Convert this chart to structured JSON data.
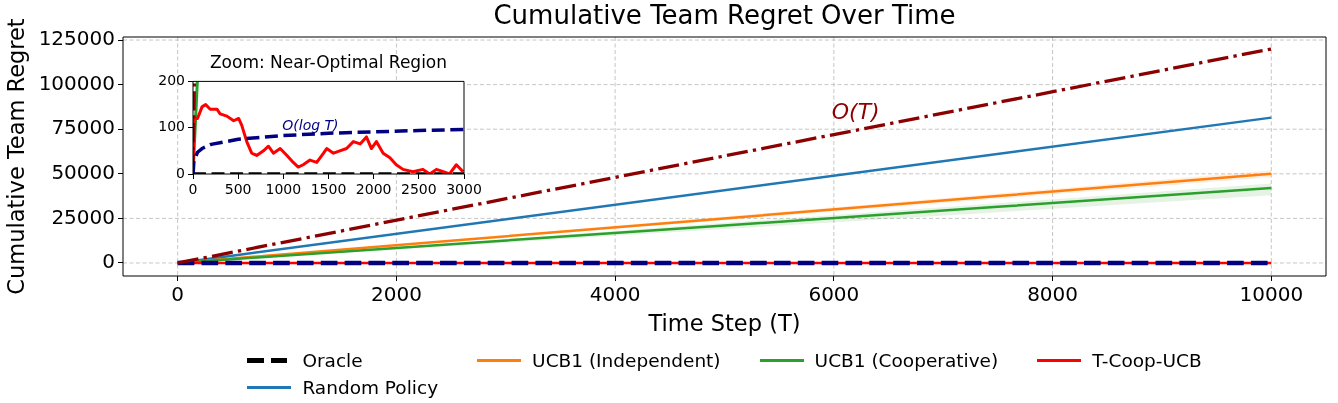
{
  "chart_data": [
    {
      "type": "line",
      "title": "Cumulative Team Regret Over Time",
      "xlabel": "Time Step (T)",
      "ylabel": "Cumulative Team Regret",
      "xlim": [
        -500,
        10500
      ],
      "xticks": [
        0,
        2000,
        4000,
        6000,
        8000,
        10000
      ],
      "ylim": [
        -7300,
        126700
      ],
      "yticks": [
        0,
        25000,
        50000,
        75000,
        100000,
        125000
      ],
      "grid": true,
      "legend": "bottom",
      "annotations": [
        {
          "text": "O(T)",
          "x": 6200,
          "y": 74400
        }
      ],
      "series": [
        {
          "name": "Oracle",
          "color": "#000000",
          "line_style": "dashed"
        },
        {
          "name": "Random Policy",
          "color": "#1f77b4",
          "x": [
            0,
            10000
          ],
          "values": [
            0,
            81500
          ]
        },
        {
          "name": "UCB1 (Independent)",
          "color": "#ff7f0e",
          "x": [
            0,
            2500,
            5000,
            7500,
            10000
          ],
          "values": [
            0,
            12500,
            25000,
            37500,
            50000
          ],
          "lower": [
            0,
            12000,
            24000,
            36000,
            48000
          ],
          "upper": [
            0,
            13000,
            26000,
            39000,
            52000
          ]
        },
        {
          "name": "UCB1 (Cooperative)",
          "color": "#2ca02c",
          "x": [
            0,
            2500,
            5000,
            7500,
            10000
          ],
          "values": [
            0,
            10500,
            21000,
            31500,
            42000
          ],
          "lower": [
            0,
            9500,
            19000,
            28500,
            38000
          ],
          "upper": [
            0,
            11000,
            22500,
            33500,
            44500
          ]
        },
        {
          "name": "T-Coop-UCB",
          "color": "#ff0000",
          "x": [
            0,
            10000
          ],
          "values": [
            0,
            0
          ]
        },
        {
          "color": "#000080",
          "line_style": "dashed",
          "x": [
            0,
            10000
          ],
          "values": [
            0,
            0
          ]
        },
        {
          "color": "#8b0000",
          "line_style": "dashdot",
          "x": [
            0,
            10000
          ],
          "values": [
            0,
            120000
          ]
        }
      ]
    },
    {
      "type": "line",
      "title": "Zoom: Near-Optimal Region",
      "xlim": [
        0,
        3000
      ],
      "xticks": [
        0,
        500,
        1000,
        1500,
        2000,
        2500,
        3000
      ],
      "ylim": [
        0,
        200
      ],
      "yticks": [
        0,
        100,
        200
      ],
      "annotations": [
        {
          "text": "O(log T)",
          "x": 1300,
          "y": 85
        }
      ],
      "series": [
        {
          "color": "#000000",
          "line_style": "dashed",
          "x": [
            0,
            3000
          ],
          "values": [
            0,
            0
          ]
        },
        {
          "color": "#2ca02c",
          "x": [
            0,
            48
          ],
          "values": [
            0,
            200
          ]
        },
        {
          "color": "#ff0000",
          "x": [
            0,
            15,
            50,
            100,
            140,
            190,
            265,
            300,
            375,
            450,
            505,
            540,
            595,
            650,
            705,
            780,
            835,
            890,
            965,
            1040,
            1110,
            1165,
            1220,
            1295,
            1370,
            1445,
            1480,
            1555,
            1625,
            1700,
            1775,
            1850,
            1920,
            1975,
            2030,
            2105,
            2180,
            2250,
            2325,
            2435,
            2545,
            2620,
            2695,
            2770,
            2840,
            2915,
            2990
          ],
          "values": [
            0,
            120,
            120,
            145,
            150,
            140,
            140,
            130,
            125,
            115,
            120,
            105,
            70,
            45,
            40,
            50,
            60,
            45,
            55,
            40,
            25,
            15,
            20,
            30,
            25,
            45,
            55,
            45,
            50,
            55,
            70,
            65,
            80,
            55,
            70,
            45,
            35,
            20,
            10,
            5,
            10,
            0,
            10,
            5,
            0,
            20,
            5
          ]
        },
        {
          "color": "#8b0000",
          "line_style": "dashdot",
          "x": [
            0,
            17
          ],
          "values": [
            0,
            200
          ]
        },
        {
          "color": "#000080",
          "line_style": "dashed",
          "x": [
            1,
            10,
            50,
            100,
            200,
            500,
            1000,
            1500,
            2000,
            2500,
            3000
          ],
          "values": [
            0,
            28,
            47,
            55,
            64,
            75,
            83,
            88,
            91,
            94,
            96
          ]
        }
      ]
    }
  ]
}
